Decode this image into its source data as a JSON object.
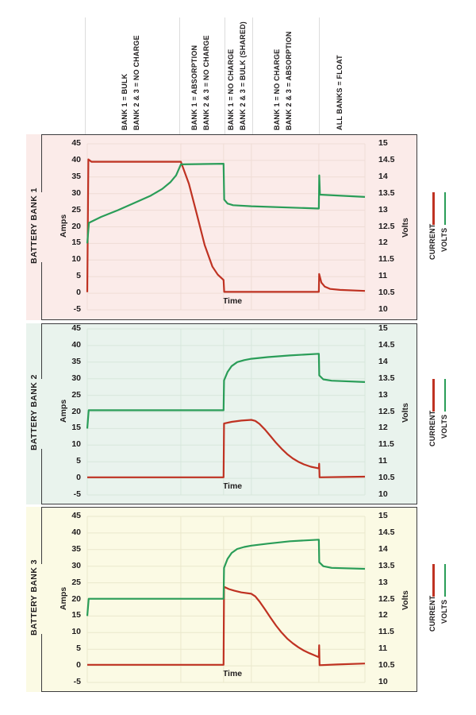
{
  "phases": [
    {
      "line1": "BANK 1 = BULK",
      "line2": "BANK 2 & 3 = NO CHARGE"
    },
    {
      "line1": "BANK 1 = ABSORPTION",
      "line2": "BANK 2 & 3 = NO CHARGE"
    },
    {
      "line1": "BANK 1 = NO CHARGE",
      "line2": "BANK 2 & 3 = BULK (SHARED)"
    },
    {
      "line1": "BANK 1 = NO CHARGE",
      "line2": "BANK 2 & 3 = ABSORPTION"
    },
    {
      "line1": "ALL BANKS = FLOAT",
      "line2": ""
    }
  ],
  "panels": [
    {
      "title": "BATTERY BANK 1"
    },
    {
      "title": "BATTERY BANK 2"
    },
    {
      "title": "BATTERY BANK 3"
    }
  ],
  "axes": {
    "amps_label": "Amps",
    "volts_label": "Volts",
    "time_label": "Time",
    "amps_ticks": [
      "45",
      "40",
      "35",
      "30",
      "25",
      "20",
      "15",
      "10",
      "5",
      "0",
      "-5"
    ],
    "volts_ticks": [
      "15",
      "14.5",
      "14",
      "13.5",
      "13",
      "12.5",
      "12",
      "11.5",
      "11",
      "10.5",
      "10"
    ]
  },
  "legend": {
    "current": "CURRENT",
    "volts": "VOLTS"
  },
  "colors": {
    "current": "#bf3222",
    "volts": "#2a9d58",
    "panel1_bg": "#fbebe9",
    "panel2_bg": "#e9f3ed",
    "panel3_bg": "#fbfae4",
    "panel1_grid": "#efdcd6",
    "panel2_grid": "#d7e7dc",
    "panel3_grid": "#eae8cc",
    "frame": "#3b3b3d",
    "separator": "#dcdcdc",
    "text": "#1f1c1d"
  },
  "chart_data": [
    {
      "type": "line",
      "title": "BATTERY BANK 1",
      "xlabel": "Time",
      "ylabel_left": "Amps",
      "ylabel_right": "Volts",
      "ylim_left": [
        -5,
        45
      ],
      "ylim_right": [
        10,
        15
      ],
      "grid": true,
      "legend_position": "right",
      "phase_boundaries_t": [
        0,
        33.7,
        49.1,
        59.1,
        83.4,
        100
      ],
      "series": [
        {
          "name": "CURRENT",
          "axis": "amps",
          "color": "#bf3222",
          "points": [
            [
              0,
              0.3
            ],
            [
              0.4,
              40.3
            ],
            [
              1.5,
              39.6
            ],
            [
              33.7,
              39.6
            ],
            [
              36.6,
              33
            ],
            [
              39.4,
              24
            ],
            [
              42.3,
              14.5
            ],
            [
              45.1,
              8
            ],
            [
              47,
              5.6
            ],
            [
              49.1,
              4
            ],
            [
              49.3,
              0.4
            ],
            [
              83.4,
              0.4
            ],
            [
              83.5,
              5.8
            ],
            [
              84.3,
              3.2
            ],
            [
              85.5,
              2
            ],
            [
              87.5,
              1.3
            ],
            [
              91,
              1
            ],
            [
              100,
              0.7
            ]
          ]
        },
        {
          "name": "VOLTS",
          "axis": "volts",
          "color": "#2a9d58",
          "points": [
            [
              0,
              12
            ],
            [
              0.6,
              12.62
            ],
            [
              5,
              12.8
            ],
            [
              11,
              13
            ],
            [
              17,
              13.22
            ],
            [
              22.9,
              13.44
            ],
            [
              27,
              13.64
            ],
            [
              30,
              13.85
            ],
            [
              32,
              14.05
            ],
            [
              33.7,
              14.38
            ],
            [
              49.1,
              14.4
            ],
            [
              49.3,
              13.32
            ],
            [
              50.5,
              13.2
            ],
            [
              52.5,
              13.15
            ],
            [
              59.1,
              13.12
            ],
            [
              83.4,
              13.05
            ],
            [
              83.55,
              14.05
            ],
            [
              83.8,
              13.47
            ],
            [
              100,
              13.4
            ]
          ]
        }
      ]
    },
    {
      "type": "line",
      "title": "BATTERY BANK 2",
      "xlabel": "Time",
      "ylabel_left": "Amps",
      "ylabel_right": "Volts",
      "ylim_left": [
        -5,
        45
      ],
      "ylim_right": [
        10,
        15
      ],
      "grid": true,
      "legend_position": "right",
      "phase_boundaries_t": [
        0,
        33.7,
        49.1,
        59.1,
        83.4,
        100
      ],
      "series": [
        {
          "name": "CURRENT",
          "axis": "amps",
          "color": "#bf3222",
          "points": [
            [
              0,
              0.3
            ],
            [
              49.1,
              0.3
            ],
            [
              49.25,
              16.5
            ],
            [
              52,
              17
            ],
            [
              55.5,
              17.4
            ],
            [
              59.1,
              17.6
            ],
            [
              60.5,
              17.3
            ],
            [
              62,
              16.4
            ],
            [
              64,
              14.7
            ],
            [
              66,
              12.7
            ],
            [
              68,
              10.7
            ],
            [
              70,
              8.9
            ],
            [
              72,
              7.3
            ],
            [
              74,
              6
            ],
            [
              76,
              5
            ],
            [
              78,
              4.2
            ],
            [
              80.5,
              3.5
            ],
            [
              83.4,
              3
            ],
            [
              83.5,
              4.4
            ],
            [
              83.65,
              0.3
            ],
            [
              92,
              0.4
            ],
            [
              100,
              0.5
            ]
          ]
        },
        {
          "name": "VOLTS",
          "axis": "volts",
          "color": "#2a9d58",
          "points": [
            [
              0,
              12
            ],
            [
              0.5,
              12.55
            ],
            [
              49.1,
              12.55
            ],
            [
              49.25,
              13.45
            ],
            [
              50.5,
              13.7
            ],
            [
              52,
              13.88
            ],
            [
              54,
              14
            ],
            [
              56.5,
              14.06
            ],
            [
              59.1,
              14.1
            ],
            [
              65,
              14.15
            ],
            [
              73,
              14.2
            ],
            [
              83.4,
              14.25
            ],
            [
              83.55,
              13.6
            ],
            [
              85,
              13.48
            ],
            [
              88,
              13.44
            ],
            [
              100,
              13.4
            ]
          ]
        }
      ]
    },
    {
      "type": "line",
      "title": "BATTERY BANK 3",
      "xlabel": "Time",
      "ylabel_left": "Amps",
      "ylabel_right": "Volts",
      "ylim_left": [
        -5,
        45
      ],
      "ylim_right": [
        10,
        15
      ],
      "grid": true,
      "legend_position": "right",
      "phase_boundaries_t": [
        0,
        33.7,
        49.1,
        59.1,
        83.4,
        100
      ],
      "series": [
        {
          "name": "CURRENT",
          "axis": "amps",
          "color": "#bf3222",
          "points": [
            [
              0,
              0.3
            ],
            [
              49.1,
              0.3
            ],
            [
              49.25,
              23.8
            ],
            [
              51,
              23.1
            ],
            [
              53,
              22.6
            ],
            [
              55.5,
              22.1
            ],
            [
              59.1,
              21.7
            ],
            [
              60.5,
              20.9
            ],
            [
              62,
              19.4
            ],
            [
              64,
              17
            ],
            [
              66,
              14.5
            ],
            [
              68,
              12.1
            ],
            [
              70,
              10
            ],
            [
              72,
              8.2
            ],
            [
              74,
              6.8
            ],
            [
              76,
              5.6
            ],
            [
              78,
              4.6
            ],
            [
              80,
              3.8
            ],
            [
              82,
              3.1
            ],
            [
              83.4,
              2.6
            ],
            [
              83.5,
              6.2
            ],
            [
              83.65,
              0.2
            ],
            [
              90,
              0.4
            ],
            [
              100,
              0.7
            ]
          ]
        },
        {
          "name": "VOLTS",
          "axis": "volts",
          "color": "#2a9d58",
          "points": [
            [
              0,
              12
            ],
            [
              0.5,
              12.52
            ],
            [
              49.1,
              12.52
            ],
            [
              49.25,
              13.45
            ],
            [
              50.5,
              13.72
            ],
            [
              52,
              13.9
            ],
            [
              54,
              14.02
            ],
            [
              56.5,
              14.08
            ],
            [
              59.1,
              14.12
            ],
            [
              65,
              14.18
            ],
            [
              73,
              14.25
            ],
            [
              83.4,
              14.3
            ],
            [
              83.55,
              13.62
            ],
            [
              85,
              13.5
            ],
            [
              88,
              13.45
            ],
            [
              100,
              13.42
            ]
          ]
        }
      ]
    }
  ]
}
